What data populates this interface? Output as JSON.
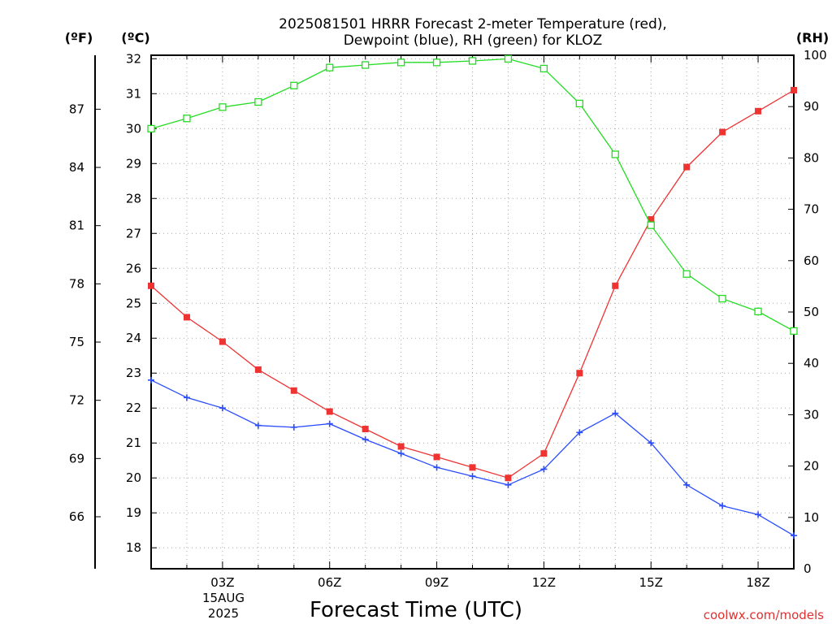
{
  "chart_data": {
    "type": "line",
    "title_line1": "2025081501 HRRR Forecast 2-meter Temperature (red),",
    "title_line2": "Dewpoint (blue), RH (green) for KLOZ",
    "xlabel": "Forecast Time (UTC)",
    "date_line1": "15AUG",
    "date_line2": "2025",
    "units": {
      "fahrenheit": "(ºF)",
      "celsius": "(ºC)",
      "rh": "(RH)"
    },
    "credit": "coolwx.com/models",
    "x_hours": [
      1,
      2,
      3,
      4,
      5,
      6,
      7,
      8,
      9,
      10,
      11,
      12,
      13,
      14,
      15,
      16,
      17,
      18,
      19
    ],
    "x_ticks": [
      {
        "hour": 3,
        "label": "03Z"
      },
      {
        "hour": 6,
        "label": "06Z"
      },
      {
        "hour": 9,
        "label": "09Z"
      },
      {
        "hour": 12,
        "label": "12Z"
      },
      {
        "hour": 15,
        "label": "15Z"
      },
      {
        "hour": 18,
        "label": "18Z"
      }
    ],
    "xlim": [
      1,
      19
    ],
    "celsius_axis": {
      "ylim": [
        17.4,
        32.1
      ],
      "ticks": [
        18,
        19,
        20,
        21,
        22,
        23,
        24,
        25,
        26,
        27,
        28,
        29,
        30,
        31,
        32
      ]
    },
    "fahrenheit_ticks": [
      66,
      69,
      72,
      75,
      78,
      81,
      84,
      87
    ],
    "rh_axis": {
      "ylim": [
        0,
        100
      ],
      "ticks": [
        0,
        10,
        20,
        30,
        40,
        50,
        60,
        70,
        80,
        90,
        100
      ]
    },
    "series": [
      {
        "name": "Temperature",
        "color": "#ee3333",
        "marker": "filled-square",
        "axis": "celsius",
        "values": [
          25.5,
          24.6,
          23.9,
          23.1,
          22.5,
          21.9,
          21.4,
          20.9,
          20.6,
          20.3,
          20.0,
          20.7,
          23.0,
          25.5,
          27.4,
          28.9,
          29.9,
          30.5,
          31.1
        ]
      },
      {
        "name": "Dewpoint",
        "color": "#2a4dff",
        "marker": "plus",
        "axis": "celsius",
        "values": [
          22.8,
          22.3,
          22.0,
          21.5,
          21.45,
          21.55,
          21.1,
          20.7,
          20.3,
          20.05,
          19.8,
          20.25,
          21.3,
          21.85,
          21.0,
          19.8,
          19.2,
          18.95,
          18.35
        ]
      },
      {
        "name": "RH",
        "color": "#22dd22",
        "marker": "open-square",
        "axis": "rh",
        "values": [
          85.7,
          87.7,
          89.9,
          90.9,
          94.1,
          97.6,
          98.1,
          98.6,
          98.6,
          98.9,
          99.3,
          97.4,
          90.6,
          80.7,
          66.9,
          57.4,
          52.6,
          50.1,
          46.3
        ]
      }
    ]
  }
}
